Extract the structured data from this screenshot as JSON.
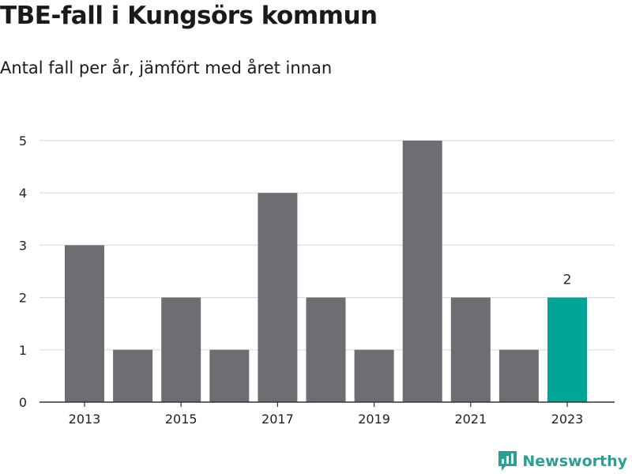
{
  "header": {
    "title": "TBE-fall i Kungsörs kommun",
    "subtitle": "Antal fall per år, jämfört med året innan"
  },
  "branding": {
    "name": "Newsworthy",
    "color": "#2a9f94"
  },
  "chart_data": {
    "type": "bar",
    "title": "TBE-fall i Kungsörs kommun",
    "subtitle": "Antal fall per år, jämfört med året innan",
    "categories": [
      "2013",
      "2014",
      "2015",
      "2016",
      "2017",
      "2018",
      "2019",
      "2020",
      "2021",
      "2022",
      "2023"
    ],
    "values": [
      3,
      1,
      2,
      1,
      4,
      2,
      1,
      5,
      2,
      1,
      2
    ],
    "x_tick_labels": [
      "2013",
      "2015",
      "2017",
      "2019",
      "2021",
      "2023"
    ],
    "y_ticks": [
      0,
      1,
      2,
      3,
      4,
      5
    ],
    "ylim": [
      0,
      5
    ],
    "xlabel": "",
    "ylabel": "",
    "grid": true,
    "colors": {
      "default": "#6e6d73",
      "highlight": "#00a597",
      "grid": "#dddddd",
      "axis": "#333333"
    },
    "highlight": {
      "category": "2023",
      "label": "2"
    }
  }
}
